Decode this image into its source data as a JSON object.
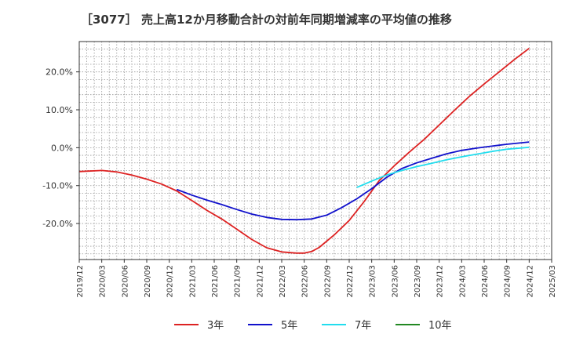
{
  "chart_data": {
    "type": "line",
    "title": "［3077］ 売上高12か月移動合計の対前年同期増減率の平均値の推移",
    "xlabel": "",
    "ylabel": "",
    "ylim": [
      -29.5,
      28
    ],
    "xlim": [
      "2019/12",
      "2025/03"
    ],
    "y_ticks": [
      20,
      10,
      0,
      -10,
      -20
    ],
    "y_tick_labels": [
      "20.0%",
      "10.0%",
      "0.0%",
      "-10.0%",
      "-20.0%"
    ],
    "x_tick_labels": [
      "2019/12",
      "2020/03",
      "2020/06",
      "2020/09",
      "2020/12",
      "2021/03",
      "2021/06",
      "2021/09",
      "2021/12",
      "2022/03",
      "2022/06",
      "2022/09",
      "2022/12",
      "2023/03",
      "2023/06",
      "2023/09",
      "2023/12",
      "2024/03",
      "2024/06",
      "2024/09",
      "2024/12",
      "2025/03"
    ],
    "grid": true,
    "legend_position": "bottom",
    "series": [
      {
        "name": "3年",
        "color": "#dd2222",
        "x": [
          "2019/12",
          "2020/01",
          "2020/03",
          "2020/05",
          "2020/07",
          "2020/09",
          "2020/11",
          "2021/01",
          "2021/03",
          "2021/05",
          "2021/07",
          "2021/09",
          "2021/11",
          "2022/01",
          "2022/03",
          "2022/05",
          "2022/06",
          "2022/07",
          "2022/08",
          "2022/10",
          "2022/12",
          "2023/02",
          "2023/04",
          "2023/06",
          "2023/08",
          "2023/10",
          "2023/12",
          "2024/02",
          "2024/04",
          "2024/06",
          "2024/08",
          "2024/10",
          "2024/12"
        ],
        "values": [
          -6.3,
          -6.2,
          -6.0,
          -6.4,
          -7.2,
          -8.3,
          -9.6,
          -11.4,
          -13.9,
          -16.5,
          -18.8,
          -21.5,
          -24.2,
          -26.4,
          -27.5,
          -27.8,
          -27.8,
          -27.4,
          -26.3,
          -23.0,
          -19.2,
          -14.2,
          -8.7,
          -4.8,
          -1.2,
          2.2,
          6.0,
          9.8,
          13.5,
          16.8,
          20.0,
          23.2,
          26.2
        ]
      },
      {
        "name": "5年",
        "color": "#1111cc",
        "x": [
          "2021/01",
          "2021/03",
          "2021/05",
          "2021/07",
          "2021/09",
          "2021/11",
          "2022/01",
          "2022/03",
          "2022/05",
          "2022/07",
          "2022/09",
          "2022/11",
          "2023/01",
          "2023/03",
          "2023/05",
          "2023/07",
          "2023/09",
          "2023/11",
          "2024/01",
          "2024/03",
          "2024/05",
          "2024/07",
          "2024/09",
          "2024/12"
        ],
        "values": [
          -11.0,
          -12.5,
          -13.8,
          -15.0,
          -16.3,
          -17.5,
          -18.4,
          -18.9,
          -19.0,
          -18.8,
          -17.8,
          -15.8,
          -13.5,
          -10.8,
          -7.8,
          -5.5,
          -4.0,
          -2.8,
          -1.6,
          -0.7,
          -0.1,
          0.4,
          0.9,
          1.5
        ]
      },
      {
        "name": "7年",
        "color": "#22ddee",
        "x": [
          "2023/01",
          "2023/03",
          "2023/05",
          "2023/07",
          "2023/09",
          "2023/11",
          "2024/01",
          "2024/03",
          "2024/05",
          "2024/07",
          "2024/09",
          "2024/12"
        ],
        "values": [
          -10.5,
          -8.8,
          -7.2,
          -6.0,
          -5.0,
          -4.1,
          -3.2,
          -2.4,
          -1.7,
          -1.0,
          -0.4,
          0.1
        ]
      },
      {
        "name": "10年",
        "color": "#228822",
        "x": [],
        "values": []
      }
    ]
  }
}
